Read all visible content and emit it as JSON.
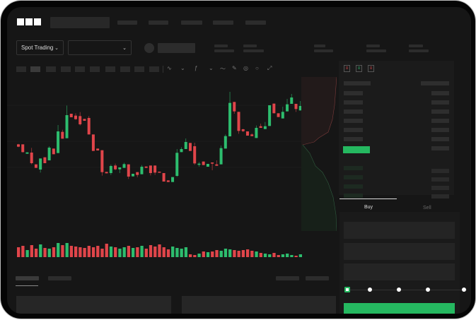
{
  "brand": {
    "logo": "OKX"
  },
  "header": {
    "search_placeholder": "",
    "nav_items": [
      "",
      "",
      "",
      "",
      ""
    ]
  },
  "market_bar": {
    "mode_select": {
      "label": "Spot Trading",
      "icon": "chevron-down-icon"
    },
    "pair_select": {
      "value": "",
      "icon": "chevron-down-icon"
    }
  },
  "colors": {
    "up": "#2dbd6e",
    "down": "#e0454a",
    "buy_button": "#25b860",
    "background": "#161616"
  },
  "orderbook": {
    "view_icons": [
      "orderbook-both-icon",
      "orderbook-bids-icon",
      "orderbook-asks-icon"
    ]
  },
  "order_form": {
    "tabs": {
      "buy": "Buy",
      "sell": "Sell"
    },
    "active_tab": "Buy",
    "slider_percent": 0,
    "slider_steps": 5
  },
  "chart_data": {
    "type": "candlestick",
    "title": "",
    "xlabel": "",
    "ylabel": "",
    "grid": true,
    "candles": [
      {
        "o": 185,
        "c": 175,
        "h": 187,
        "l": 173
      },
      {
        "o": 185,
        "c": 152,
        "h": 185,
        "l": 150
      },
      {
        "o": 145,
        "c": 151,
        "h": 151,
        "l": 145
      },
      {
        "o": 150,
        "c": 105,
        "h": 170,
        "l": 100
      },
      {
        "o": 100,
        "c": 85,
        "h": 100,
        "l": 85
      },
      {
        "o": 78,
        "c": 125,
        "h": 125,
        "l": 65
      },
      {
        "o": 130,
        "c": 105,
        "h": 130,
        "l": 105
      },
      {
        "o": 117,
        "c": 171,
        "h": 177,
        "l": 117
      },
      {
        "o": 167,
        "c": 143,
        "h": 167,
        "l": 143
      },
      {
        "o": 148,
        "c": 240,
        "h": 267,
        "l": 148
      },
      {
        "o": 238,
        "c": 209,
        "h": 247,
        "l": 209
      },
      {
        "o": 211,
        "c": 309,
        "h": 350,
        "l": 211
      },
      {
        "o": 315,
        "c": 300,
        "h": 315,
        "l": 300
      },
      {
        "o": 307,
        "c": 292,
        "h": 317,
        "l": 289
      },
      {
        "o": 305,
        "c": 270,
        "h": 322,
        "l": 265
      },
      {
        "o": 293,
        "c": 285,
        "h": 293,
        "l": 285
      },
      {
        "o": 297,
        "c": 227,
        "h": 305,
        "l": 227
      },
      {
        "o": 227,
        "c": 157,
        "h": 227,
        "l": 157
      },
      {
        "o": 167,
        "c": 159,
        "h": 167,
        "l": 159
      },
      {
        "o": 160,
        "c": 67,
        "h": 160,
        "l": 52
      },
      {
        "o": 68,
        "c": 62,
        "h": 68,
        "l": 62
      },
      {
        "o": 63,
        "c": 93,
        "h": 99,
        "l": 55
      },
      {
        "o": 95,
        "c": 79,
        "h": 103,
        "l": 75
      },
      {
        "o": 79,
        "c": 87,
        "h": 87,
        "l": 63
      },
      {
        "o": 85,
        "c": 101,
        "h": 107,
        "l": 85
      },
      {
        "o": 100,
        "c": 48,
        "h": 100,
        "l": 38
      },
      {
        "o": 49,
        "c": 60,
        "h": 60,
        "l": 49
      },
      {
        "o": 67,
        "c": 55,
        "h": 67,
        "l": 45
      },
      {
        "o": 58,
        "c": 90,
        "h": 97,
        "l": 58
      },
      {
        "o": 91,
        "c": 85,
        "h": 91,
        "l": 85
      },
      {
        "o": 95,
        "c": 63,
        "h": 95,
        "l": 53
      },
      {
        "o": 95,
        "c": 65,
        "h": 95,
        "l": 55
      },
      {
        "o": 69,
        "c": 65,
        "h": 69,
        "l": 65
      },
      {
        "o": 63,
        "c": 27,
        "h": 63,
        "l": 27
      },
      {
        "o": 32,
        "c": 25,
        "h": 32,
        "l": 25
      },
      {
        "o": 25,
        "c": 46,
        "h": 46,
        "l": 25
      },
      {
        "o": 51,
        "c": 149,
        "h": 165,
        "l": 47
      },
      {
        "o": 152,
        "c": 165,
        "h": 173,
        "l": 152
      },
      {
        "o": 165,
        "c": 195,
        "h": 210,
        "l": 165
      },
      {
        "o": 191,
        "c": 157,
        "h": 191,
        "l": 157
      },
      {
        "o": 177,
        "c": 104,
        "h": 192,
        "l": 98
      },
      {
        "o": 98,
        "c": 103,
        "h": 110,
        "l": 90
      },
      {
        "o": 112,
        "c": 97,
        "h": 112,
        "l": 97
      },
      {
        "o": 90,
        "c": 102,
        "h": 102,
        "l": 90
      },
      {
        "o": 108,
        "c": 103,
        "h": 108,
        "l": 75
      },
      {
        "o": 100,
        "c": 94,
        "h": 117,
        "l": 94
      },
      {
        "o": 100,
        "c": 169,
        "h": 180,
        "l": 100
      },
      {
        "o": 167,
        "c": 220,
        "h": 227,
        "l": 167
      },
      {
        "o": 219,
        "c": 361,
        "h": 408,
        "l": 219
      },
      {
        "o": 365,
        "c": 325,
        "h": 365,
        "l": 315
      },
      {
        "o": 323,
        "c": 242,
        "h": 323,
        "l": 230
      },
      {
        "o": 249,
        "c": 241,
        "h": 251,
        "l": 237
      },
      {
        "o": 240,
        "c": 222,
        "h": 240,
        "l": 222
      },
      {
        "o": 227,
        "c": 220,
        "h": 232,
        "l": 220
      },
      {
        "o": 212,
        "c": 255,
        "h": 265,
        "l": 212
      },
      {
        "o": 262,
        "c": 255,
        "h": 273,
        "l": 255
      },
      {
        "o": 250,
        "c": 262,
        "h": 280,
        "l": 250
      },
      {
        "o": 263,
        "c": 351,
        "h": 351,
        "l": 263
      },
      {
        "o": 358,
        "c": 317,
        "h": 358,
        "l": 317
      },
      {
        "o": 317,
        "c": 301,
        "h": 317,
        "l": 301
      },
      {
        "o": 295,
        "c": 323,
        "h": 345,
        "l": 295
      },
      {
        "o": 325,
        "c": 355,
        "h": 378,
        "l": 325
      },
      {
        "o": 357,
        "c": 384,
        "h": 399,
        "l": 357
      },
      {
        "o": 357,
        "c": 335,
        "h": 357,
        "l": 323
      },
      {
        "o": 329,
        "c": 348,
        "h": 369,
        "l": 329
      }
    ],
    "volumes": [
      14,
      16,
      10,
      17,
      12,
      18,
      13,
      12,
      14,
      20,
      17,
      20,
      16,
      15,
      14,
      13,
      16,
      14,
      16,
      12,
      19,
      15,
      14,
      12,
      14,
      16,
      13,
      14,
      16,
      12,
      17,
      15,
      18,
      14,
      11,
      15,
      13,
      12,
      14,
      4,
      3,
      5,
      8,
      7,
      8,
      10,
      9,
      12,
      11,
      10,
      9,
      10,
      11,
      9,
      8,
      6,
      5,
      4,
      6,
      3,
      4,
      5,
      3,
      2,
      4
    ]
  }
}
